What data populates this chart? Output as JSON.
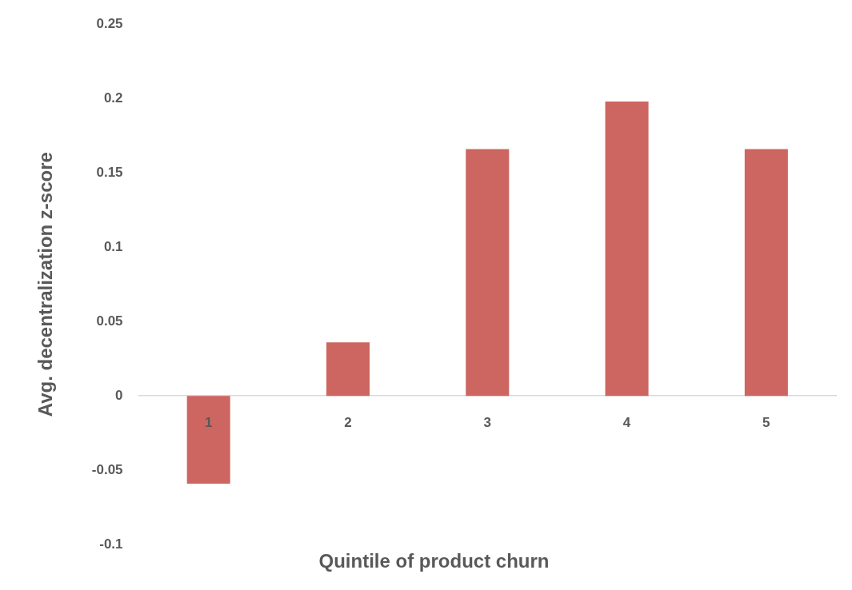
{
  "chart_data": {
    "type": "bar",
    "xlabel": "Quintile of product churn",
    "ylabel": "Avg. decentralization z-score",
    "categories": [
      "1",
      "2",
      "3",
      "4",
      "5"
    ],
    "values": [
      -0.059,
      0.036,
      0.166,
      0.198,
      0.166
    ],
    "color": "#cd6660",
    "ylim": [
      -0.1,
      0.25
    ],
    "yticks": [
      -0.1,
      -0.05,
      0,
      0.05,
      0.1,
      0.15,
      0.2,
      0.25
    ],
    "grid": false,
    "legend": false
  }
}
